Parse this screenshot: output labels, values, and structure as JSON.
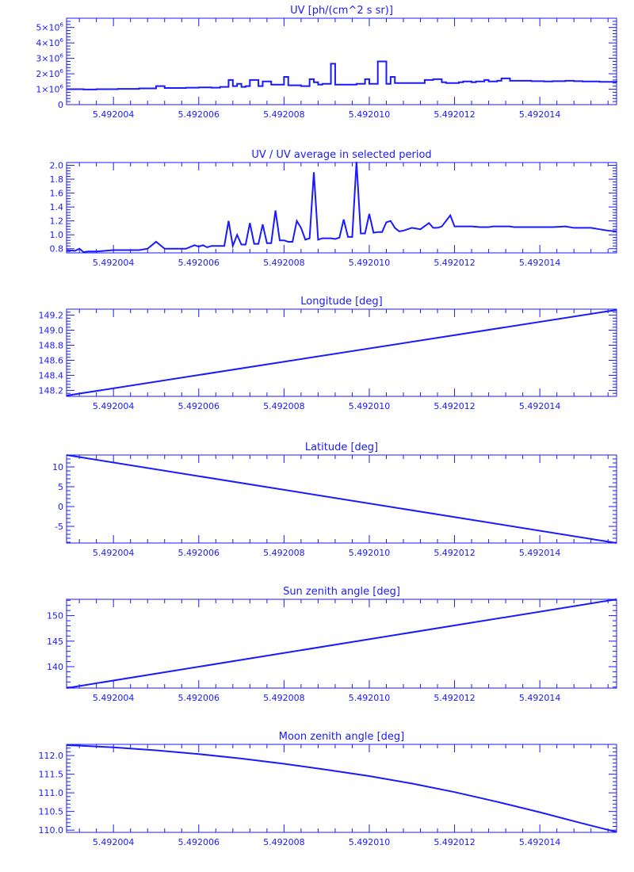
{
  "style": {
    "color": "#1a1aff",
    "background": "#ffffff"
  },
  "chart_data": [
    {
      "type": "line",
      "step": true,
      "title": "UV [ph/(cm^2 s sr)]",
      "xlabel": "",
      "ylabel": "",
      "xlim": [
        5.4920029,
        5.4920158
      ],
      "ylim": [
        0,
        5600000
      ],
      "x_ticks": [
        5.492004,
        5.492006,
        5.492008,
        5.49201,
        5.492012,
        5.492014
      ],
      "x_tick_labels": [
        "5.492004",
        "5.492006",
        "5.492008",
        "5.492010",
        "5.492012",
        "5.492014"
      ],
      "y_ticks": [
        0,
        1000000,
        2000000,
        3000000,
        4000000,
        5000000
      ],
      "y_tick_labels": [
        {
          "mantissa": "0",
          "exp": ""
        },
        {
          "mantissa": "1×10",
          "exp": "6"
        },
        {
          "mantissa": "2×10",
          "exp": "6"
        },
        {
          "mantissa": "3×10",
          "exp": "6"
        },
        {
          "mantissa": "4×10",
          "exp": "6"
        },
        {
          "mantissa": "5×10",
          "exp": "6"
        }
      ],
      "x": [
        5.4920029,
        5.4920033,
        5.4920036,
        5.4920041,
        5.4920046,
        5.492005,
        5.4920052,
        5.4920053,
        5.4920057,
        5.492006,
        5.4920063,
        5.4920065,
        5.4920067,
        5.4920068,
        5.4920069,
        5.492007,
        5.4920071,
        5.4920072,
        5.4920074,
        5.4920075,
        5.4920077,
        5.4920078,
        5.492008,
        5.4920081,
        5.4920083,
        5.4920084,
        5.4920086,
        5.4920087,
        5.4920088,
        5.4920089,
        5.4920091,
        5.4920092,
        5.4920093,
        5.4920094,
        5.4920095,
        5.4920097,
        5.4920099,
        5.49201,
        5.4920101,
        5.4920102,
        5.4920104,
        5.4920105,
        5.4920106,
        5.4920108,
        5.4920109,
        5.4920111,
        5.4920113,
        5.4920115,
        5.4920117,
        5.4920118,
        5.492012,
        5.4920121,
        5.4920122,
        5.4920124,
        5.4920125,
        5.4920127,
        5.4920128,
        5.492013,
        5.4920131,
        5.4920133,
        5.4920134,
        5.4920136,
        5.4920138,
        5.4920141,
        5.4920143,
        5.4920146,
        5.4920148,
        5.492015,
        5.4920152,
        5.4920154,
        5.4920156,
        5.4920158
      ],
      "values": [
        1000000,
        980000,
        1000000,
        1020000,
        1050000,
        1200000,
        1080000,
        1080000,
        1100000,
        1120000,
        1100000,
        1150000,
        1600000,
        1200000,
        1350000,
        1150000,
        1200000,
        1600000,
        1200000,
        1500000,
        1300000,
        1300000,
        1800000,
        1250000,
        1250000,
        1200000,
        1650000,
        1450000,
        1300000,
        1350000,
        2650000,
        1300000,
        1300000,
        1300000,
        1300000,
        1350000,
        1650000,
        1350000,
        1350000,
        2800000,
        1350000,
        1800000,
        1400000,
        1400000,
        1400000,
        1400000,
        1600000,
        1650000,
        1450000,
        1400000,
        1400000,
        1450000,
        1500000,
        1450000,
        1500000,
        1600000,
        1500000,
        1550000,
        1700000,
        1550000,
        1550000,
        1550000,
        1520000,
        1500000,
        1520000,
        1550000,
        1520000,
        1500000,
        1500000,
        1480000,
        1480000,
        1450000
      ]
    },
    {
      "type": "line",
      "title": "UV / UV average in selected period",
      "xlabel": "",
      "ylabel": "",
      "xlim": [
        5.4920029,
        5.4920158
      ],
      "ylim": [
        0.74,
        2.04
      ],
      "x_ticks": [
        5.492004,
        5.492006,
        5.492008,
        5.49201,
        5.492012,
        5.492014
      ],
      "x_tick_labels": [
        "5.492004",
        "5.492006",
        "5.492008",
        "5.492010",
        "5.492012",
        "5.492014"
      ],
      "y_ticks": [
        0.8,
        1.0,
        1.2,
        1.4,
        1.6,
        1.8,
        2.0
      ],
      "y_tick_labels": [
        {
          "mantissa": "0.8",
          "exp": ""
        },
        {
          "mantissa": "1.0",
          "exp": ""
        },
        {
          "mantissa": "1.2",
          "exp": ""
        },
        {
          "mantissa": "1.4",
          "exp": ""
        },
        {
          "mantissa": "1.6",
          "exp": ""
        },
        {
          "mantissa": "1.8",
          "exp": ""
        },
        {
          "mantissa": "2.0",
          "exp": ""
        }
      ],
      "x": [
        5.4920029,
        5.4920031,
        5.4920032,
        5.4920033,
        5.4920034,
        5.4920036,
        5.4920038,
        5.492004,
        5.4920043,
        5.4920046,
        5.4920048,
        5.492005,
        5.4920052,
        5.4920053,
        5.4920055,
        5.4920057,
        5.4920059,
        5.492006,
        5.4920061,
        5.4920062,
        5.4920063,
        5.4920064,
        5.4920066,
        5.4920067,
        5.4920068,
        5.4920069,
        5.492007,
        5.4920071,
        5.4920072,
        5.4920073,
        5.4920074,
        5.4920075,
        5.4920076,
        5.4920077,
        5.4920078,
        5.4920079,
        5.492008,
        5.4920081,
        5.4920082,
        5.4920083,
        5.4920084,
        5.4920085,
        5.4920086,
        5.4920087,
        5.4920088,
        5.4920089,
        5.4920091,
        5.4920092,
        5.4920093,
        5.4920094,
        5.4920095,
        5.4920096,
        5.4920097,
        5.4920098,
        5.4920099,
        5.49201,
        5.4920101,
        5.4920102,
        5.4920103,
        5.4920104,
        5.4920105,
        5.4920106,
        5.4920107,
        5.4920108,
        5.4920109,
        5.492011,
        5.4920112,
        5.4920114,
        5.4920115,
        5.4920116,
        5.4920117,
        5.4920119,
        5.492012,
        5.4920121,
        5.4920123,
        5.4920124,
        5.4920126,
        5.4920127,
        5.4920128,
        5.4920129,
        5.4920131,
        5.4920132,
        5.4920133,
        5.4920134,
        5.4920136,
        5.4920138,
        5.4920141,
        5.4920143,
        5.4920146,
        5.4920148,
        5.492015,
        5.4920152,
        5.4920154,
        5.4920156,
        5.4920158
      ],
      "values": [
        0.78,
        0.77,
        0.8,
        0.75,
        0.76,
        0.76,
        0.77,
        0.78,
        0.78,
        0.78,
        0.8,
        0.9,
        0.8,
        0.8,
        0.8,
        0.8,
        0.85,
        0.83,
        0.85,
        0.82,
        0.84,
        0.84,
        0.84,
        1.2,
        0.84,
        1.0,
        0.86,
        0.86,
        1.17,
        0.87,
        0.87,
        1.15,
        0.88,
        0.88,
        1.35,
        0.92,
        0.92,
        0.9,
        0.9,
        1.2,
        1.1,
        0.93,
        0.95,
        1.9,
        0.93,
        0.95,
        0.95,
        0.94,
        0.96,
        1.22,
        0.97,
        0.97,
        2.05,
        1.02,
        1.02,
        1.3,
        1.03,
        1.04,
        1.04,
        1.18,
        1.2,
        1.1,
        1.05,
        1.06,
        1.08,
        1.1,
        1.08,
        1.17,
        1.1,
        1.1,
        1.12,
        1.28,
        1.12,
        1.12,
        1.12,
        1.12,
        1.11,
        1.11,
        1.11,
        1.12,
        1.12,
        1.12,
        1.12,
        1.11,
        1.11,
        1.11,
        1.11,
        1.11,
        1.12,
        1.1,
        1.1,
        1.1,
        1.08,
        1.06,
        1.05
      ]
    },
    {
      "type": "line",
      "title": "Longitude [deg]",
      "xlabel": "",
      "ylabel": "",
      "xlim": [
        5.4920029,
        5.4920158
      ],
      "ylim": [
        148.12,
        149.28
      ],
      "x_ticks": [
        5.492004,
        5.492006,
        5.492008,
        5.49201,
        5.492012,
        5.492014
      ],
      "x_tick_labels": [
        "5.492004",
        "5.492006",
        "5.492008",
        "5.492010",
        "5.492012",
        "5.492014"
      ],
      "y_ticks": [
        148.2,
        148.4,
        148.6,
        148.8,
        149.0,
        149.2
      ],
      "y_tick_labels": [
        {
          "mantissa": "148.2",
          "exp": ""
        },
        {
          "mantissa": "148.4",
          "exp": ""
        },
        {
          "mantissa": "148.6",
          "exp": ""
        },
        {
          "mantissa": "148.8",
          "exp": ""
        },
        {
          "mantissa": "149.0",
          "exp": ""
        },
        {
          "mantissa": "149.2",
          "exp": ""
        }
      ],
      "x": [
        5.4920029,
        5.4920158
      ],
      "values": [
        148.13,
        149.27
      ]
    },
    {
      "type": "line",
      "title": "Latitude [deg]",
      "xlabel": "",
      "ylabel": "",
      "xlim": [
        5.4920029,
        5.4920158
      ],
      "ylim": [
        -9.2,
        13.0
      ],
      "x_ticks": [
        5.492004,
        5.492006,
        5.492008,
        5.49201,
        5.492012,
        5.492014
      ],
      "x_tick_labels": [
        "5.492004",
        "5.492006",
        "5.492008",
        "5.492010",
        "5.492012",
        "5.492014"
      ],
      "y_ticks": [
        -5,
        0,
        5,
        10
      ],
      "y_tick_labels": [
        {
          "mantissa": "-5",
          "exp": ""
        },
        {
          "mantissa": "0",
          "exp": ""
        },
        {
          "mantissa": "5",
          "exp": ""
        },
        {
          "mantissa": "10",
          "exp": ""
        }
      ],
      "x": [
        5.4920029,
        5.4920158
      ],
      "values": [
        13.0,
        -9.2
      ]
    },
    {
      "type": "line",
      "title": "Sun zenith angle [deg]",
      "xlabel": "",
      "ylabel": "",
      "xlim": [
        5.4920029,
        5.4920158
      ],
      "ylim": [
        135.8,
        153.2
      ],
      "x_ticks": [
        5.492004,
        5.492006,
        5.492008,
        5.49201,
        5.492012,
        5.492014
      ],
      "x_tick_labels": [
        "5.492004",
        "5.492006",
        "5.492008",
        "5.492010",
        "5.492012",
        "5.492014"
      ],
      "y_ticks": [
        140,
        145,
        150
      ],
      "y_tick_labels": [
        {
          "mantissa": "140",
          "exp": ""
        },
        {
          "mantissa": "145",
          "exp": ""
        },
        {
          "mantissa": "150",
          "exp": ""
        }
      ],
      "x": [
        5.4920029,
        5.4920158
      ],
      "values": [
        135.8,
        153.2
      ]
    },
    {
      "type": "line",
      "title": "Moon zenith angle [deg]",
      "xlabel": "",
      "ylabel": "",
      "xlim": [
        5.4920029,
        5.4920158
      ],
      "ylim": [
        109.94,
        112.3
      ],
      "x_ticks": [
        5.492004,
        5.492006,
        5.492008,
        5.49201,
        5.492012,
        5.492014
      ],
      "x_tick_labels": [
        "5.492004",
        "5.492006",
        "5.492008",
        "5.492010",
        "5.492012",
        "5.492014"
      ],
      "y_ticks": [
        110.0,
        110.5,
        111.0,
        111.5,
        112.0
      ],
      "y_tick_labels": [
        {
          "mantissa": "110.0",
          "exp": ""
        },
        {
          "mantissa": "110.5",
          "exp": ""
        },
        {
          "mantissa": "111.0",
          "exp": ""
        },
        {
          "mantissa": "111.5",
          "exp": ""
        },
        {
          "mantissa": "112.0",
          "exp": ""
        }
      ],
      "x": [
        5.4920029,
        5.4920033,
        5.492004,
        5.492005,
        5.492006,
        5.492007,
        5.492008,
        5.492009,
        5.49201,
        5.492011,
        5.492012,
        5.492013,
        5.492014,
        5.492015,
        5.4920158
      ],
      "values": [
        112.28,
        112.26,
        112.22,
        112.14,
        112.04,
        111.92,
        111.78,
        111.62,
        111.45,
        111.25,
        111.02,
        110.76,
        110.48,
        110.18,
        109.95
      ]
    }
  ]
}
